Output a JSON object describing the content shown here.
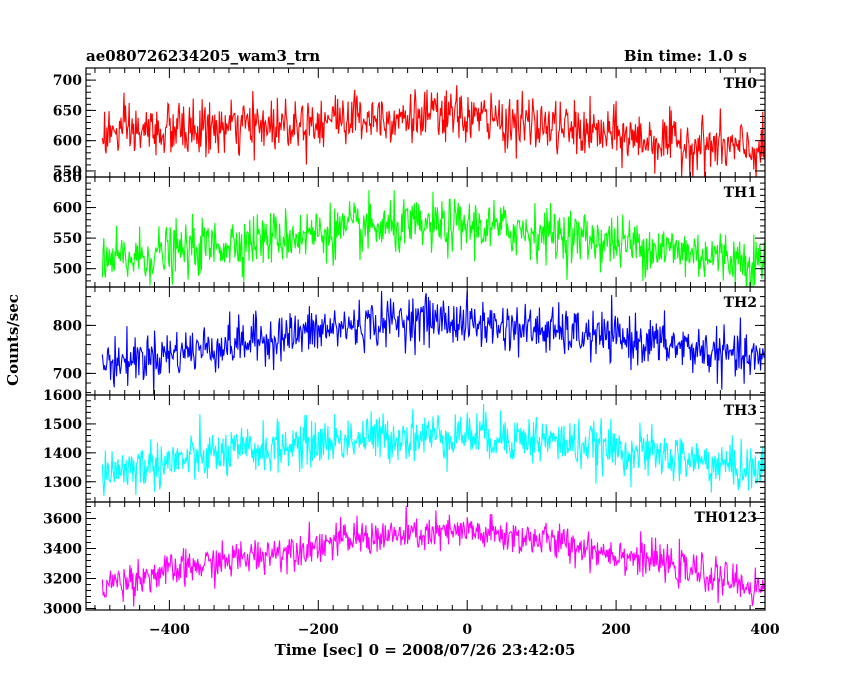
{
  "header": {
    "title": "ae080726234205_wam3_trn",
    "bin_time": "Bin time: 1.0 s"
  },
  "chart_data": {
    "type": "line",
    "title": "ae080726234205_wam3_trn",
    "subtitle": "Bin time: 1.0 s",
    "xlabel": "Time [sec] 0 = 2008/07/26 23:42:05",
    "ylabel": "Counts/sec",
    "xlim": [
      -512,
      400
    ],
    "x_ticks": [
      -400,
      -200,
      0,
      200,
      400
    ],
    "x_tick_labels": [
      "−400",
      "−200",
      "0",
      "200",
      "400"
    ],
    "bin_time_s": 1.0,
    "panels": [
      {
        "name": "TH0",
        "color": "#ff0000",
        "ylim": [
          540,
          720
        ],
        "y_ticks": [
          550,
          600,
          650,
          700
        ],
        "y_tick_labels": [
          "550",
          "600",
          "650",
          "700"
        ],
        "trend": [
          [
            -490,
            612
          ],
          [
            -300,
            622
          ],
          [
            -150,
            640
          ],
          [
            0,
            640
          ],
          [
            100,
            625
          ],
          [
            250,
            600
          ],
          [
            400,
            582
          ]
        ],
        "noise": 22
      },
      {
        "name": "TH1",
        "color": "#00ff00",
        "ylim": [
          470,
          650
        ],
        "y_ticks": [
          500,
          550,
          600
        ],
        "y_tick_labels": [
          "500",
          "550",
          "600"
        ],
        "top_tick_label": "650",
        "trend": [
          [
            -490,
            510
          ],
          [
            -300,
            545
          ],
          [
            -150,
            565
          ],
          [
            0,
            570
          ],
          [
            100,
            560
          ],
          [
            250,
            535
          ],
          [
            400,
            510
          ]
        ],
        "noise": 22
      },
      {
        "name": "TH2",
        "color": "#0000ff",
        "ylim": [
          655,
          880
        ],
        "y_ticks": [
          700,
          800
        ],
        "y_tick_labels": [
          "700",
          "800"
        ],
        "trend": [
          [
            -490,
            720
          ],
          [
            -300,
            765
          ],
          [
            -150,
            800
          ],
          [
            -60,
            815
          ],
          [
            0,
            805
          ],
          [
            100,
            790
          ],
          [
            250,
            765
          ],
          [
            400,
            725
          ]
        ],
        "noise": 25
      },
      {
        "name": "TH3",
        "color": "#00ffff",
        "ylim": [
          1230,
          1600
        ],
        "y_ticks": [
          1300,
          1400,
          1500
        ],
        "y_tick_labels": [
          "1300",
          "1400",
          "1500"
        ],
        "top_tick_label": "1600",
        "trend": [
          [
            -490,
            1335
          ],
          [
            -300,
            1405
          ],
          [
            -150,
            1450
          ],
          [
            0,
            1465
          ],
          [
            100,
            1445
          ],
          [
            250,
            1395
          ],
          [
            400,
            1335
          ]
        ],
        "noise": 42
      },
      {
        "name": "TH0123",
        "color": "#ff00ff",
        "ylim": [
          2990,
          3710
        ],
        "y_ticks": [
          3000,
          3200,
          3400,
          3600
        ],
        "y_tick_labels": [
          "3000",
          "3200",
          "3400",
          "3600"
        ],
        "trend": [
          [
            -490,
            3160
          ],
          [
            -300,
            3340
          ],
          [
            -150,
            3470
          ],
          [
            0,
            3510
          ],
          [
            100,
            3460
          ],
          [
            250,
            3320
          ],
          [
            400,
            3120
          ]
        ],
        "noise": 60
      }
    ]
  }
}
